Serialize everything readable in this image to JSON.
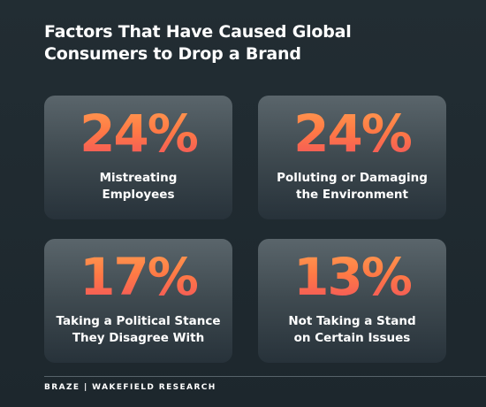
{
  "title": {
    "line1": "Factors That Have Caused Global",
    "line2": "Consumers to Drop a Brand"
  },
  "cards": [
    {
      "percent": "24%",
      "label_line1": "Mistreating",
      "label_line2": "Employees"
    },
    {
      "percent": "24%",
      "label_line1": "Polluting or Damaging",
      "label_line2": "the Environment"
    },
    {
      "percent": "17%",
      "label_line1": "Taking a Political Stance",
      "label_line2": "They Disagree With"
    },
    {
      "percent": "13%",
      "label_line1": "Not Taking a Stand",
      "label_line2": "on Certain Issues"
    }
  ],
  "footer": "BRAZE  |  WAKEFIELD RESEARCH",
  "colors": {
    "background": "#1f2a30",
    "accent_top": "#ff9a50",
    "accent_bottom": "#f2545b",
    "text": "#ffffff"
  }
}
